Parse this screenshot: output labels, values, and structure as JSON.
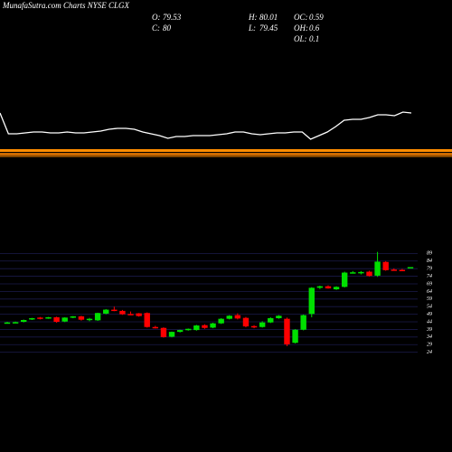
{
  "chart_data": {
    "type": "candlestick",
    "title": "MunafaSutra.com Charts NYSE CLGX",
    "info": [
      {
        "label": "O:",
        "value": 79.53
      },
      {
        "label": "H:",
        "value": 80.01
      },
      {
        "label": "OC:",
        "value": 0.59
      },
      {
        "label": "C:",
        "value": 80.0
      },
      {
        "label": "L:",
        "value": 79.45
      },
      {
        "label": "OH:",
        "value": 0.6
      },
      {
        "label": "OL:",
        "value": 0.1
      }
    ],
    "up_color": "#00e000",
    "down_color": "#ff0000",
    "grid": true,
    "ylim": [
      22,
      91
    ],
    "yticks": [
      24,
      29,
      34,
      39,
      44,
      49,
      54,
      59,
      64,
      69,
      74,
      79,
      84,
      89
    ],
    "series": [
      {
        "open": [
          43.5,
          43.6,
          44,
          45.6,
          46.8,
          46.3,
          47,
          44.2,
          46.8,
          47.6,
          45.4,
          45,
          49.4,
          52,
          51.2,
          49.2,
          49.6,
          49.8,
          40.6,
          40,
          34.2,
          37.4,
          38.6,
          38.6,
          41.8,
          40.2,
          43,
          46,
          48.4,
          46.6,
          41.2,
          40.6,
          43.6,
          46.4,
          46,
          30.2,
          38.8,
          49.2,
          66.4,
          67.4,
          65.4,
          67,
          76.4,
          76.6,
          77,
          74.4,
          83.4,
          78.4,
          78.2,
          79.53
        ],
        "high": [
          44,
          44.2,
          45.5,
          46.6,
          47.2,
          47.2,
          47.4,
          47,
          47.8,
          48,
          46.6,
          50,
          52.4,
          54,
          51.8,
          50.8,
          49.8,
          50.2,
          41.4,
          40.4,
          37.6,
          38.8,
          39.6,
          42,
          42.4,
          43.4,
          46.4,
          48.4,
          49.6,
          47.2,
          41.8,
          44.4,
          47,
          48.4,
          46.8,
          39.2,
          48.8,
          66.8,
          67.8,
          68,
          67.4,
          77,
          77.4,
          77.4,
          77.6,
          90,
          84,
          79.2,
          78.8,
          80.01
        ],
        "low": [
          43,
          43.2,
          43.6,
          45.2,
          45.6,
          46,
          43.4,
          43.8,
          46.4,
          44.8,
          44.4,
          44.6,
          49,
          51,
          48.6,
          48.4,
          47.4,
          40.2,
          39.6,
          33.6,
          33.8,
          37,
          38.2,
          38.2,
          39.4,
          39.8,
          42.6,
          45.6,
          45.6,
          40.4,
          39.8,
          40.2,
          43.2,
          46,
          28,
          29.8,
          38.4,
          47,
          65.6,
          65.8,
          65,
          66.6,
          75.8,
          75.2,
          73.8,
          73.6,
          77.6,
          77.8,
          77.6,
          79.45
        ],
        "close": [
          43.6,
          43.8,
          45.2,
          46.4,
          46.2,
          47,
          44,
          46.8,
          47.6,
          45.4,
          46,
          49.8,
          52,
          51.4,
          49,
          48.8,
          47.8,
          40.6,
          40,
          34,
          37.4,
          38.6,
          39.4,
          41.6,
          40,
          43,
          46,
          48,
          46.2,
          41,
          40.4,
          43.6,
          46.4,
          48,
          29.2,
          38.8,
          48.4,
          66.4,
          67.4,
          66,
          67,
          76.4,
          76.6,
          76.8,
          74.2,
          83.6,
          78,
          78.2,
          78.1,
          80.0
        ]
      }
    ],
    "indicator": {
      "color": "#ffffff",
      "ylim": [
        0,
        100
      ],
      "values": [
        87.5,
        30,
        30,
        32.5,
        35,
        35,
        32.5,
        32.5,
        35,
        32.5,
        32.5,
        35,
        37.5,
        42.5,
        45,
        45,
        42.5,
        35,
        30,
        25,
        17.5,
        22.5,
        22.5,
        25,
        25,
        25,
        27.5,
        30,
        35,
        35,
        30,
        27.5,
        30,
        32.5,
        32.5,
        35,
        35,
        15,
        25,
        35,
        50,
        67.5,
        70,
        70,
        75,
        82.5,
        82.5,
        80,
        90,
        87.5
      ]
    }
  }
}
